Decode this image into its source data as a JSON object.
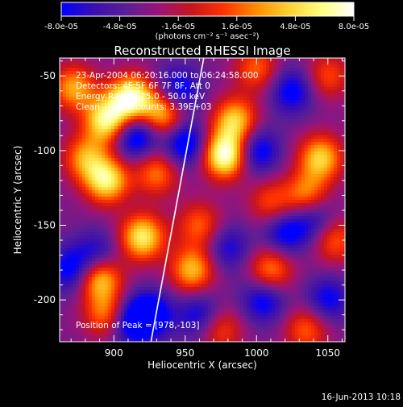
{
  "chart_data": {
    "type": "heatmap",
    "title": "Reconstructed RHESSI Image",
    "xlabel": "Heliocentric X (arcsec)",
    "ylabel": "Heliocentric Y (arcsec)",
    "xlim": [
      862,
      1062
    ],
    "ylim": [
      -228,
      -38
    ],
    "x_ticks": [
      900,
      950,
      1000,
      1050
    ],
    "y_ticks": [
      -50,
      -100,
      -150,
      -200
    ],
    "colorbar": {
      "tick_labels": [
        "-8.0e-05",
        "-4.8e-05",
        "-1.6e-05",
        "1.6e-05",
        "4.8e-05",
        "8.0e-05"
      ],
      "range": [
        -8e-05,
        8e-05
      ],
      "unit_label": "(photons cm⁻² s⁻¹ asec⁻²)",
      "colors": [
        "#0000ff",
        "#3a0fb0",
        "#5a1e96",
        "#9a1478",
        "#c8141e",
        "#ff3200",
        "#ff8c00",
        "#ffd030",
        "#ffff80",
        "#ffffff"
      ]
    },
    "annotations": {
      "time": "23-Apr-2004 06:20:16.000 to 06:24:58.000",
      "detectors": "Detectors: 4F 5F 6F 7F 8F, Att 0",
      "energy": "Energy Range: 25.0 - 50.0 keV",
      "clean": "Clean     Total counts: 3.39E+03",
      "peak": "Position of Peak = [978,-103]"
    },
    "peak": [
      978,
      -103
    ],
    "limb_line": [
      [
        963,
        -38
      ],
      [
        926,
        -228
      ]
    ],
    "blobs": [
      {
        "x": 912,
        "y": -65,
        "v": 0.95
      },
      {
        "x": 895,
        "y": -80,
        "v": 0.85
      },
      {
        "x": 872,
        "y": -58,
        "v": 0.6
      },
      {
        "x": 935,
        "y": -75,
        "v": 0.7
      },
      {
        "x": 978,
        "y": -103,
        "v": 1.0
      },
      {
        "x": 985,
        "y": -80,
        "v": 0.7
      },
      {
        "x": 895,
        "y": -120,
        "v": 0.8
      },
      {
        "x": 880,
        "y": -105,
        "v": 0.55
      },
      {
        "x": 930,
        "y": -115,
        "v": 0.5
      },
      {
        "x": 920,
        "y": -158,
        "v": 0.8
      },
      {
        "x": 890,
        "y": -185,
        "v": 0.75
      },
      {
        "x": 955,
        "y": -180,
        "v": 0.65
      },
      {
        "x": 960,
        "y": -150,
        "v": 0.45
      },
      {
        "x": 895,
        "y": -210,
        "v": 0.55
      },
      {
        "x": 1045,
        "y": -105,
        "v": 0.7
      },
      {
        "x": 1035,
        "y": -130,
        "v": 0.55
      },
      {
        "x": 1010,
        "y": -180,
        "v": 0.55
      },
      {
        "x": 1055,
        "y": -160,
        "v": 0.45
      },
      {
        "x": 1035,
        "y": -220,
        "v": 0.45
      },
      {
        "x": 1000,
        "y": -45,
        "v": 0.45
      },
      {
        "x": 1050,
        "y": -50,
        "v": 0.4
      },
      {
        "x": 1010,
        "y": -135,
        "v": 0.4
      },
      {
        "x": 975,
        "y": -220,
        "v": 0.4
      },
      {
        "x": 915,
        "y": -90,
        "v": -0.6
      },
      {
        "x": 945,
        "y": -60,
        "v": -0.5
      },
      {
        "x": 950,
        "y": -95,
        "v": -0.55
      },
      {
        "x": 925,
        "y": -210,
        "v": -0.6
      },
      {
        "x": 910,
        "y": -215,
        "v": -0.45
      },
      {
        "x": 888,
        "y": -170,
        "v": -0.4
      },
      {
        "x": 870,
        "y": -180,
        "v": -0.45
      },
      {
        "x": 1000,
        "y": -100,
        "v": -0.5
      },
      {
        "x": 1020,
        "y": -155,
        "v": -0.45
      },
      {
        "x": 1040,
        "y": -145,
        "v": -0.4
      },
      {
        "x": 1025,
        "y": -60,
        "v": -0.45
      },
      {
        "x": 1005,
        "y": -200,
        "v": -0.45
      },
      {
        "x": 960,
        "y": -210,
        "v": -0.4
      },
      {
        "x": 980,
        "y": -165,
        "v": -0.35
      },
      {
        "x": 1050,
        "y": -200,
        "v": -0.4
      }
    ]
  },
  "footer": {
    "timestamp": "16-Jun-2013 10:18"
  }
}
